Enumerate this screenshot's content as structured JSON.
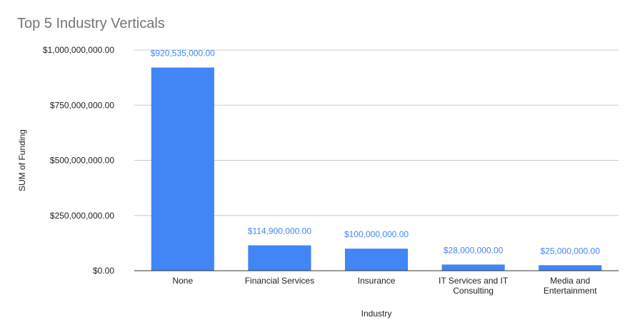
{
  "chart_data": {
    "type": "bar",
    "title": "Top 5 Industry Verticals",
    "xlabel": "Industry",
    "ylabel": "SUM of Funding",
    "categories": [
      "None",
      "Financial Services",
      "Insurance",
      "IT Services and IT Consulting",
      "Media and Entertainment"
    ],
    "category_labels": [
      [
        "None"
      ],
      [
        "Financial Services"
      ],
      [
        "Insurance"
      ],
      [
        "IT Services and IT",
        "Consulting"
      ],
      [
        "Media and",
        "Entertainment"
      ]
    ],
    "values": [
      920535000,
      114900000,
      100000000,
      28000000,
      25000000
    ],
    "data_labels": [
      "$920,535,000.00",
      "$114,900,000.00",
      "$100,000,000.00",
      "$28,000,000.00",
      "$25,000,000.00"
    ],
    "ylim": [
      0,
      1000000000
    ],
    "yticks": [
      0,
      250000000,
      500000000,
      750000000,
      1000000000
    ],
    "ytick_labels": [
      "$0.00",
      "$250,000,000.00",
      "$500,000,000.00",
      "$750,000,000.00",
      "$1,000,000,000.00"
    ],
    "grid": true,
    "legend": "none",
    "bar_color": "#4285f4",
    "data_label_color": "#4285f4",
    "grid_color": "#cccccc",
    "axis_color": "#333333"
  }
}
